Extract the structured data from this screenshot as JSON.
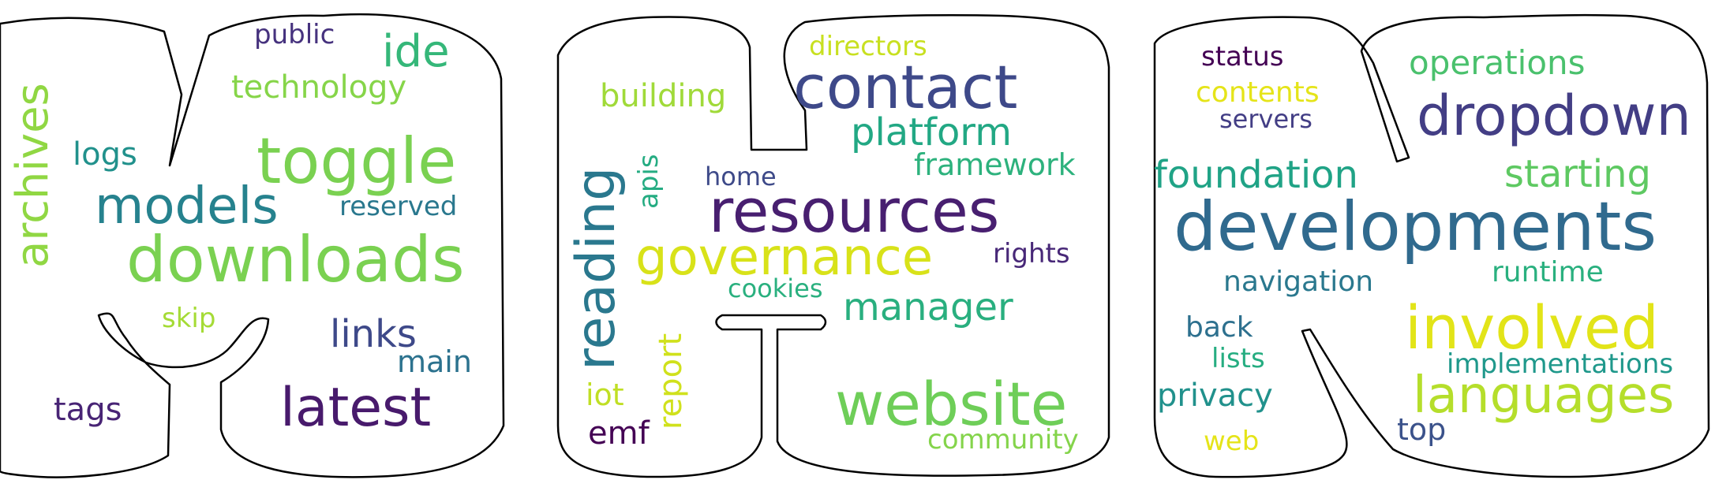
{
  "words": [
    {
      "text": "archives",
      "color": "#90d743"
    },
    {
      "text": "public",
      "color": "#46327e"
    },
    {
      "text": "ide",
      "color": "#35b779"
    },
    {
      "text": "technology",
      "color": "#86d549"
    },
    {
      "text": "logs",
      "color": "#21918c"
    },
    {
      "text": "toggle",
      "color": "#7ad151"
    },
    {
      "text": "models",
      "color": "#26828e"
    },
    {
      "text": "reserved",
      "color": "#2a788e"
    },
    {
      "text": "downloads",
      "color": "#7ad151"
    },
    {
      "text": "skip",
      "color": "#a5db36"
    },
    {
      "text": "links",
      "color": "#3e4989"
    },
    {
      "text": "main",
      "color": "#2c728e"
    },
    {
      "text": "tags",
      "color": "#482475"
    },
    {
      "text": "latest",
      "color": "#481a6c"
    },
    {
      "text": "directors",
      "color": "#c8e020"
    },
    {
      "text": "contact",
      "color": "#3e4989"
    },
    {
      "text": "building",
      "color": "#a0da39"
    },
    {
      "text": "platform",
      "color": "#22a884"
    },
    {
      "text": "reading",
      "color": "#2a788e"
    },
    {
      "text": "apis",
      "color": "#25ac82"
    },
    {
      "text": "home",
      "color": "#3e4a89"
    },
    {
      "text": "framework",
      "color": "#2db27d"
    },
    {
      "text": "resources",
      "color": "#481f70"
    },
    {
      "text": "governance",
      "color": "#d8e219"
    },
    {
      "text": "rights",
      "color": "#482878"
    },
    {
      "text": "cookies",
      "color": "#2ab07f"
    },
    {
      "text": "manager",
      "color": "#29af7f"
    },
    {
      "text": "report",
      "color": "#d0e11c"
    },
    {
      "text": "iot",
      "color": "#c0df25"
    },
    {
      "text": "emf",
      "color": "#440154"
    },
    {
      "text": "website",
      "color": "#6ece58"
    },
    {
      "text": "community",
      "color": "#84d44b"
    },
    {
      "text": "status",
      "color": "#440154"
    },
    {
      "text": "operations",
      "color": "#4ac16d"
    },
    {
      "text": "contents",
      "color": "#e5e419"
    },
    {
      "text": "servers",
      "color": "#433e85"
    },
    {
      "text": "dropdown",
      "color": "#433e85"
    },
    {
      "text": "foundation",
      "color": "#20a386"
    },
    {
      "text": "starting",
      "color": "#5ec962"
    },
    {
      "text": "developments",
      "color": "#306a8e"
    },
    {
      "text": "navigation",
      "color": "#2a788e"
    },
    {
      "text": "runtime",
      "color": "#2ab07f"
    },
    {
      "text": "back",
      "color": "#2d708e"
    },
    {
      "text": "involved",
      "color": "#e2e418"
    },
    {
      "text": "lists",
      "color": "#26ad81"
    },
    {
      "text": "implementations",
      "color": "#1f988b"
    },
    {
      "text": "privacy",
      "color": "#21918c"
    },
    {
      "text": "languages",
      "color": "#b5de2b"
    },
    {
      "text": "web",
      "color": "#e5e419"
    },
    {
      "text": "top",
      "color": "#3b528b"
    }
  ]
}
